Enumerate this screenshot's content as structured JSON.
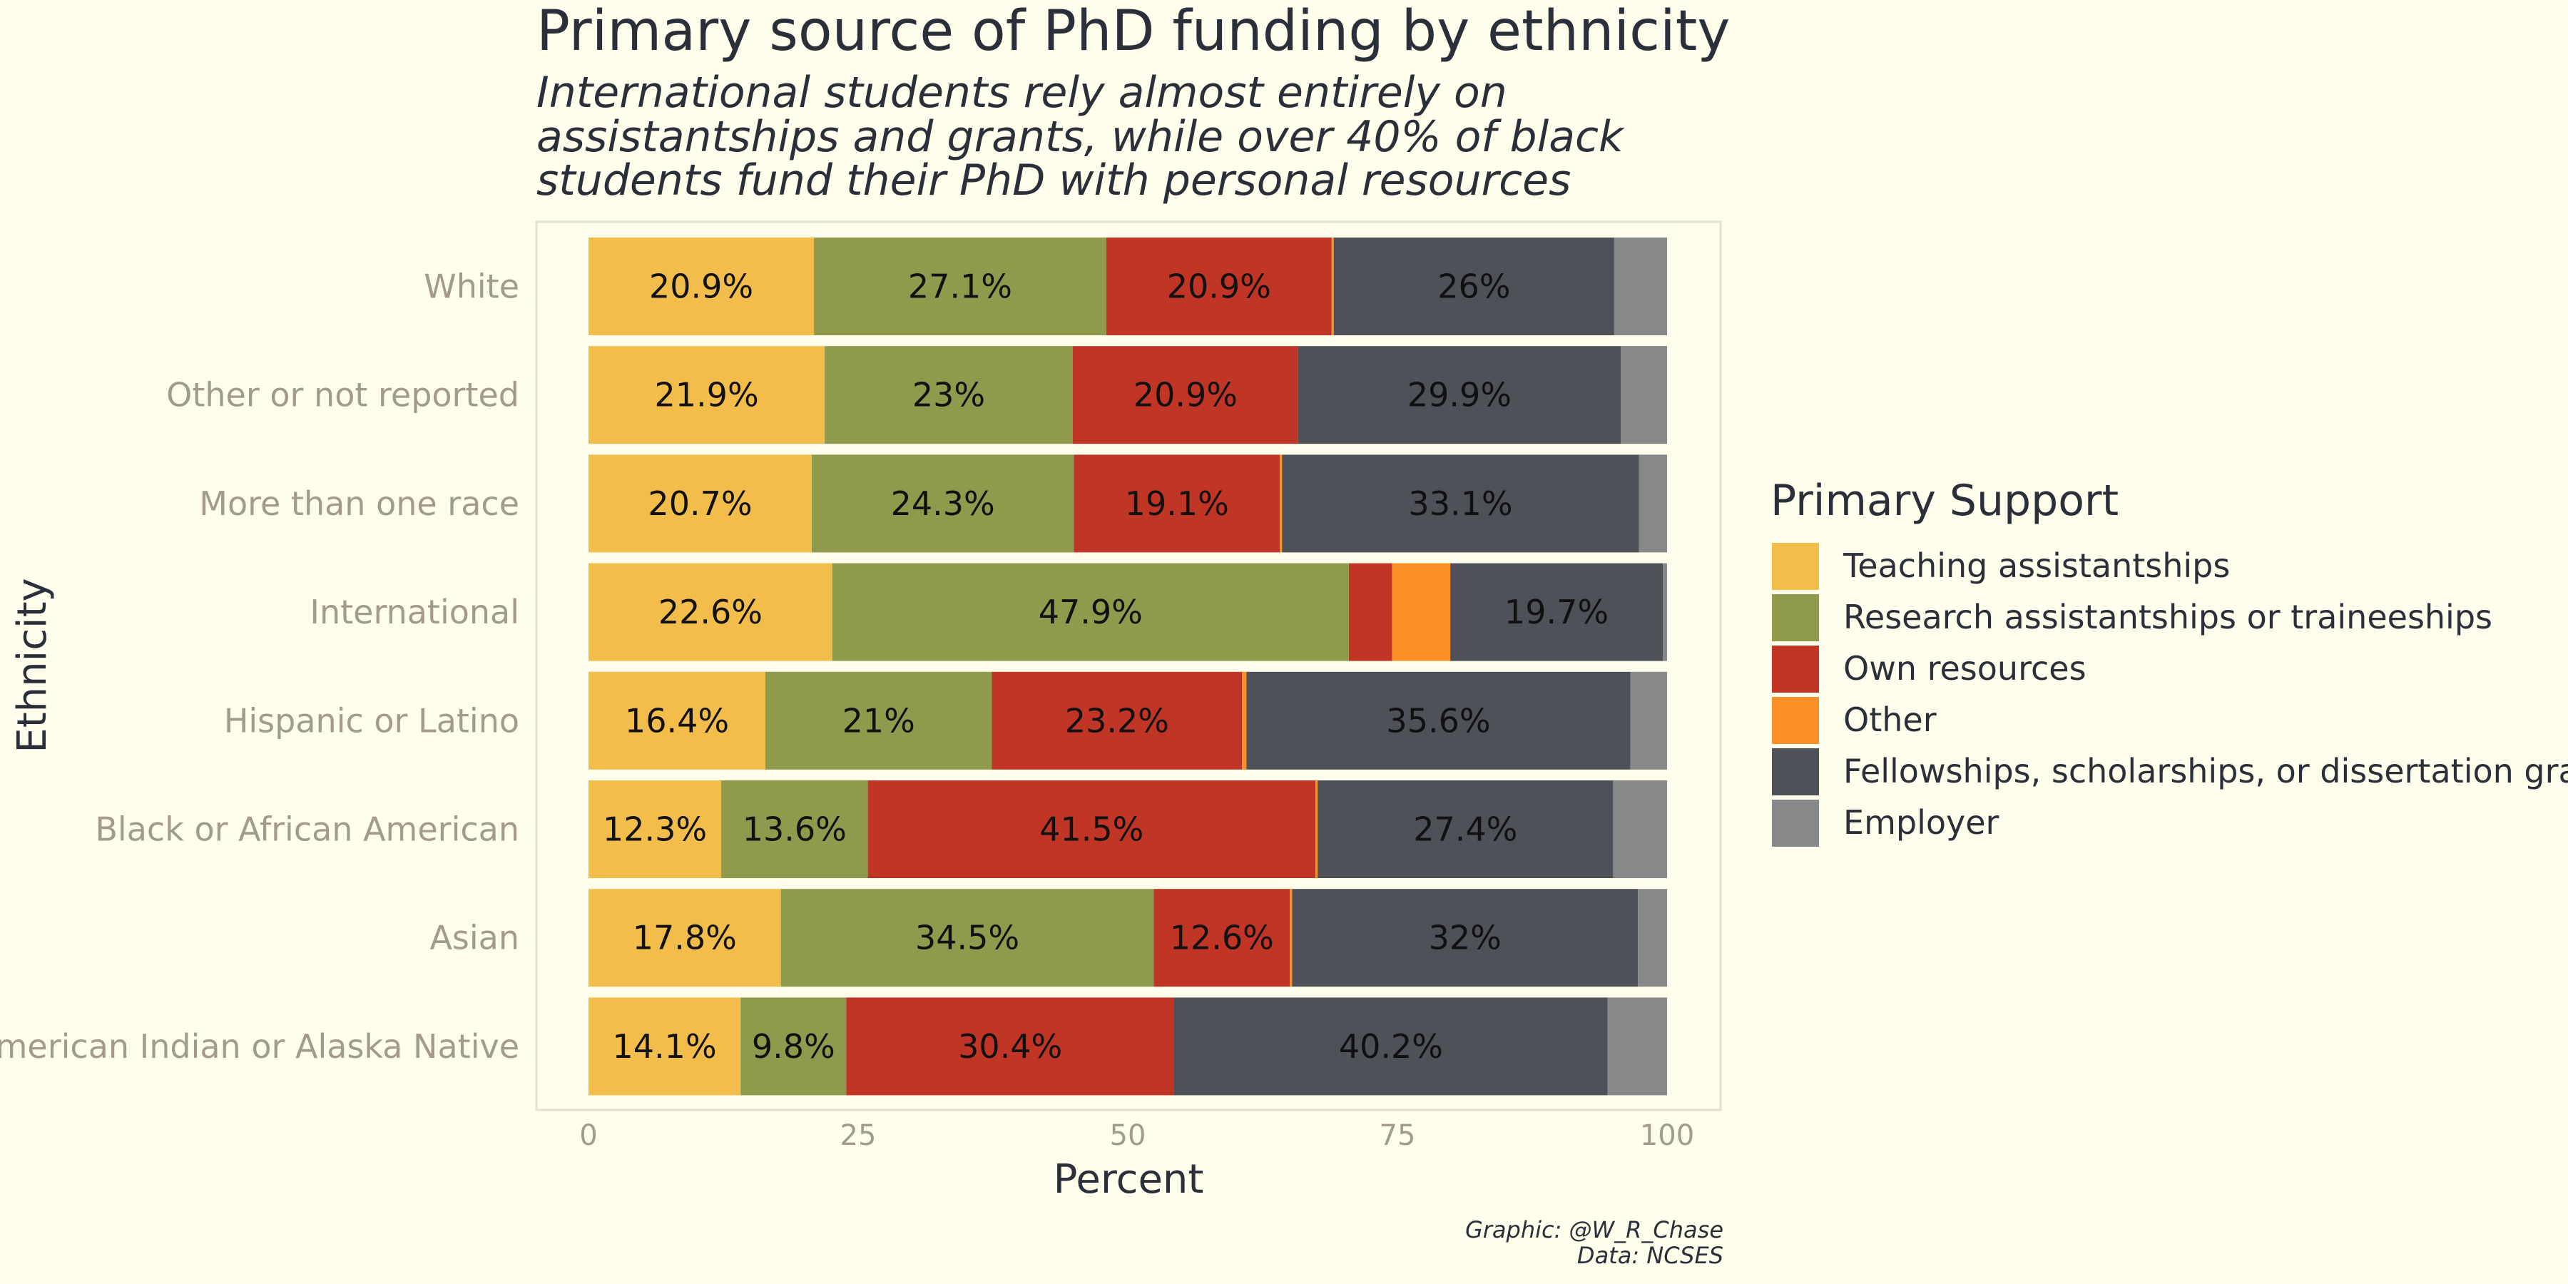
{
  "chart_data": {
    "type": "bar",
    "orientation": "horizontal",
    "stacked": true,
    "title": "Primary source of PhD funding by ethnicity",
    "subtitle": [
      "International students rely almost entirely on",
      "assistantships and grants, while over 40% of black",
      "students fund their PhD with personal resources"
    ],
    "xlabel": "Percent",
    "ylabel": "Ethnicity",
    "xlim": [
      0,
      100
    ],
    "xticks": [
      "0",
      "25",
      "50",
      "75",
      "100"
    ],
    "grid": false,
    "legend_title": "Primary Support",
    "legend_position": "right",
    "categories": [
      "White",
      "Other or not reported",
      "More than one race",
      "International",
      "Hispanic or Latino",
      "Black or African American",
      "Asian",
      "American Indian or Alaska Native"
    ],
    "series": [
      {
        "name": "Teaching assistantships",
        "color": "#f2bd4a",
        "values": [
          20.9,
          21.9,
          20.7,
          22.6,
          16.4,
          12.3,
          17.8,
          14.1
        ],
        "labels": [
          "20.9%",
          "21.9%",
          "20.7%",
          "22.6%",
          "16.4%",
          "12.3%",
          "17.8%",
          "14.1%"
        ]
      },
      {
        "name": "Research assistantships or traineeships",
        "color": "#8f9a4c",
        "values": [
          27.1,
          23.0,
          24.3,
          47.9,
          21.0,
          13.6,
          34.5,
          9.8
        ],
        "labels": [
          "27.1%",
          "23%",
          "24.3%",
          "47.9%",
          "21%",
          "13.6%",
          "34.5%",
          "9.8%"
        ]
      },
      {
        "name": "Own resources",
        "color": "#c13527",
        "values": [
          20.9,
          20.9,
          19.1,
          4.0,
          23.2,
          41.5,
          12.6,
          30.4
        ],
        "labels": [
          "20.9%",
          "20.9%",
          "19.1%",
          "",
          "23.2%",
          "41.5%",
          "12.6%",
          "30.4%"
        ]
      },
      {
        "name": "Other",
        "color": "#fb8f28",
        "values": [
          0.2,
          0.0,
          0.2,
          5.4,
          0.4,
          0.2,
          0.2,
          0.0
        ],
        "labels": [
          "",
          "",
          "",
          "",
          "",
          "",
          "",
          ""
        ]
      },
      {
        "name": "Fellowships, scholarships, or dissertation grants",
        "color": "#4f5159",
        "values": [
          26.0,
          29.9,
          33.1,
          19.7,
          35.6,
          27.4,
          32.0,
          40.2
        ],
        "labels": [
          "26%",
          "29.9%",
          "33.1%",
          "19.7%",
          "35.6%",
          "27.4%",
          "32%",
          "40.2%"
        ]
      },
      {
        "name": "Employer",
        "color": "#86888a",
        "values": [
          4.9,
          4.3,
          2.6,
          0.4,
          3.4,
          5.0,
          2.7,
          5.5
        ],
        "labels": [
          "",
          "",
          "",
          "",
          "",
          "",
          "",
          ""
        ]
      }
    ]
  },
  "caption": [
    "Graphic: @W_R_Chase",
    "Data: NCSES"
  ]
}
